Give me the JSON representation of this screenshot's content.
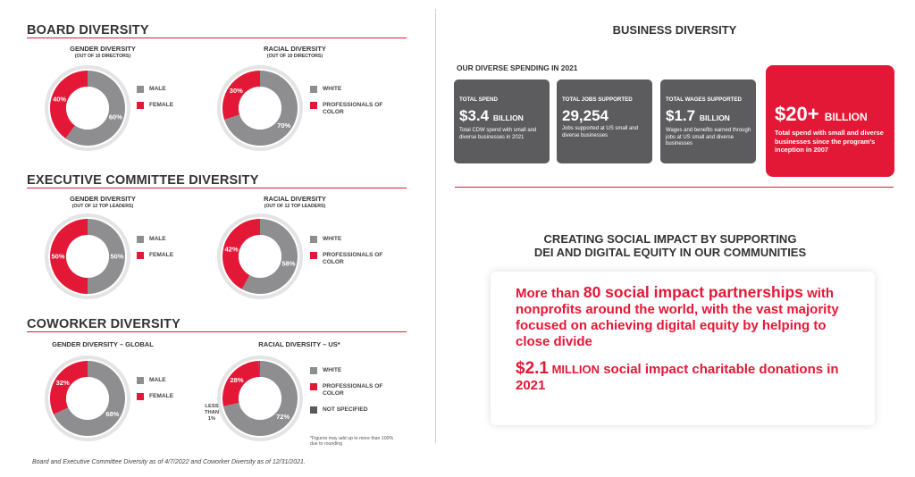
{
  "board": {
    "title": "BOARD DIVERSITY",
    "gender": {
      "heading": "GENDER DIVERSITY",
      "sub": "(OUT OF 10 DIRECTORS)"
    },
    "racial": {
      "heading": "RACIAL DIVERSITY",
      "sub": "(OUT OF 10 DIRECTORS)"
    }
  },
  "executive": {
    "title": "EXECUTIVE COMMITTEE DIVERSITY",
    "gender": {
      "heading": "GENDER DIVERSITY",
      "sub": "(OUT OF 12 TOP LEADERS)"
    },
    "racial": {
      "heading": "RACIAL DIVERSITY",
      "sub": "(OUT OF 12 TOP LEADERS)"
    }
  },
  "coworker": {
    "title": "COWORKER DIVERSITY",
    "gender": {
      "heading": "GENDER DIVERSITY – GLOBAL"
    },
    "racial": {
      "heading": "RACIAL DIVERSITY – US*"
    },
    "less_than": "LESS THAN 1%",
    "note": "*Figures may add up to more than 100% due to rounding"
  },
  "legend": {
    "male": "MALE",
    "female": "FEMALE",
    "white": "WHITE",
    "poc": "PROFESSIONALS OF COLOR",
    "not_specified": "NOT SPECIFIED"
  },
  "footnote": "Board and Executive Committee Diversity as of 4/7/2022 and Coworker Diversity as of 12/31/2021.",
  "business": {
    "title": "BUSINESS DIVERSITY",
    "spending_heading": "OUR DIVERSE SPENDING IN 2021",
    "cards": [
      {
        "label": "TOTAL SPEND",
        "value": "$3.4",
        "unit": "BILLION",
        "desc": "Total CDW spend with small and diverse businesses in 2021"
      },
      {
        "label": "TOTAL JOBS SUPPORTED",
        "value": "29,254",
        "unit": "",
        "desc": "Jobs supported at US small and diverse businesses"
      },
      {
        "label": "TOTAL WAGES SUPPORTED",
        "value": "$1.7",
        "unit": "BILLION",
        "desc": "Wages and benefits earned through jobs at US small and diverse businesses"
      }
    ],
    "highlight": {
      "value": "$20+",
      "unit": "BILLION",
      "desc": "Total spend with small and diverse businesses since the program's inception in 2007"
    }
  },
  "impact": {
    "title_line1": "CREATING SOCIAL IMPACT BY SUPPORTING",
    "title_line2": "DEI AND DIGITAL EQUITY IN OUR COMMUNITIES",
    "p1_pre": "More than ",
    "p1_num": "80 social impact partnerships",
    "p1_post": " with nonprofits around the world, with the vast majority focused on achieving digital equity by helping to close divide",
    "p2_num": "$2.1",
    "p2_unit": " MILLION",
    "p2_post": " social impact charitable donations in 2021"
  },
  "chart_data": [
    {
      "type": "pie",
      "title": "GENDER DIVERSITY",
      "subtitle": "(OUT OF 10 DIRECTORS)",
      "labels": [
        "MALE",
        "FEMALE"
      ],
      "values": [
        60,
        40
      ],
      "colors": [
        "#8e8e90",
        "#e31837"
      ]
    },
    {
      "type": "pie",
      "title": "RACIAL DIVERSITY",
      "subtitle": "(OUT OF 10 DIRECTORS)",
      "labels": [
        "WHITE",
        "PROFESSIONALS OF COLOR"
      ],
      "values": [
        70,
        30
      ],
      "colors": [
        "#8e8e90",
        "#e31837"
      ]
    },
    {
      "type": "pie",
      "title": "GENDER DIVERSITY",
      "subtitle": "(OUT OF 12 TOP LEADERS)",
      "labels": [
        "MALE",
        "FEMALE"
      ],
      "values": [
        50,
        50
      ],
      "colors": [
        "#8e8e90",
        "#e31837"
      ]
    },
    {
      "type": "pie",
      "title": "RACIAL DIVERSITY",
      "subtitle": "(OUT OF 12 TOP LEADERS)",
      "labels": [
        "WHITE",
        "PROFESSIONALS OF COLOR"
      ],
      "values": [
        58,
        42
      ],
      "colors": [
        "#8e8e90",
        "#e31837"
      ]
    },
    {
      "type": "pie",
      "title": "GENDER DIVERSITY – GLOBAL",
      "labels": [
        "MALE",
        "FEMALE"
      ],
      "values": [
        68,
        32
      ],
      "colors": [
        "#8e8e90",
        "#e31837"
      ]
    },
    {
      "type": "pie",
      "title": "RACIAL DIVERSITY – US*",
      "labels": [
        "WHITE",
        "PROFESSIONALS OF COLOR",
        "NOT SPECIFIED"
      ],
      "values": [
        72,
        28,
        0.5
      ],
      "colors": [
        "#8e8e90",
        "#e31837",
        "#5b5b5e"
      ]
    }
  ]
}
